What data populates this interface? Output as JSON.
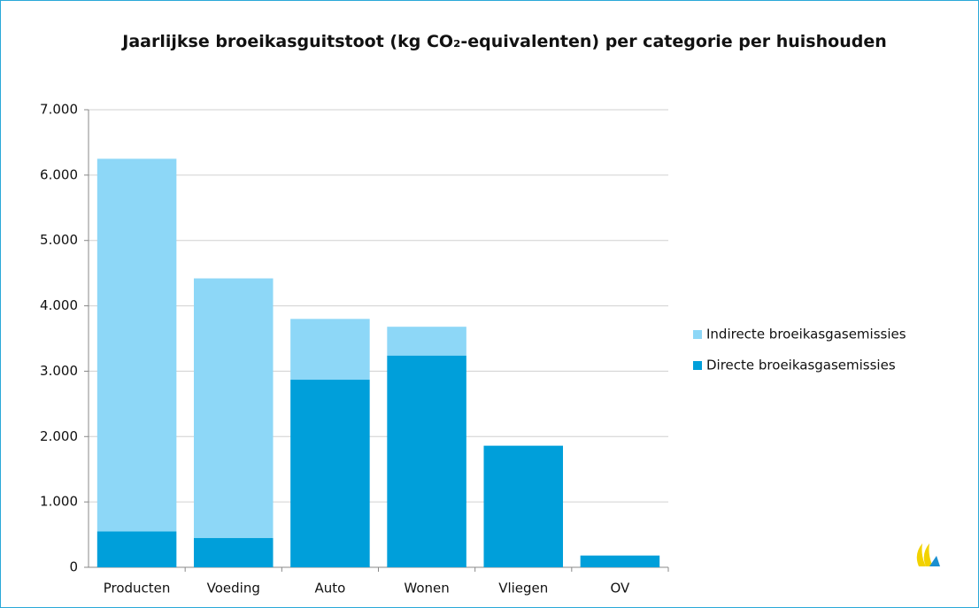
{
  "chart_data": {
    "type": "stacked_bar",
    "title": "Jaarlijkse broeikasguitstoot (kg CO₂-equivalenten)  per categorie per huishouden",
    "categories": [
      "Producten",
      "Voeding",
      "Auto",
      "Wonen",
      "Vliegen",
      "OV"
    ],
    "series": [
      {
        "name": "Directe broeikasgasemissies",
        "color": "#009fda",
        "values": [
          550,
          450,
          2870,
          3240,
          1860,
          180
        ]
      },
      {
        "name": "Indirecte broeikasgasemissies",
        "color": "#8dd7f7",
        "values": [
          5700,
          3970,
          930,
          440,
          0,
          0
        ]
      }
    ],
    "ylim": [
      0,
      7000
    ],
    "yticks": [
      0,
      {
        "value": 1000,
        "label": "1.000"
      },
      {
        "value": 2000,
        "label": "2.000"
      },
      {
        "value": 3000,
        "label": "3.000"
      },
      {
        "value": 4000,
        "label": "4.000"
      },
      {
        "value": 5000,
        "label": "5.000"
      },
      {
        "value": 6000,
        "label": "6.000"
      },
      {
        "value": 7000,
        "label": "7.000"
      }
    ],
    "grid": true,
    "legend": "right"
  }
}
